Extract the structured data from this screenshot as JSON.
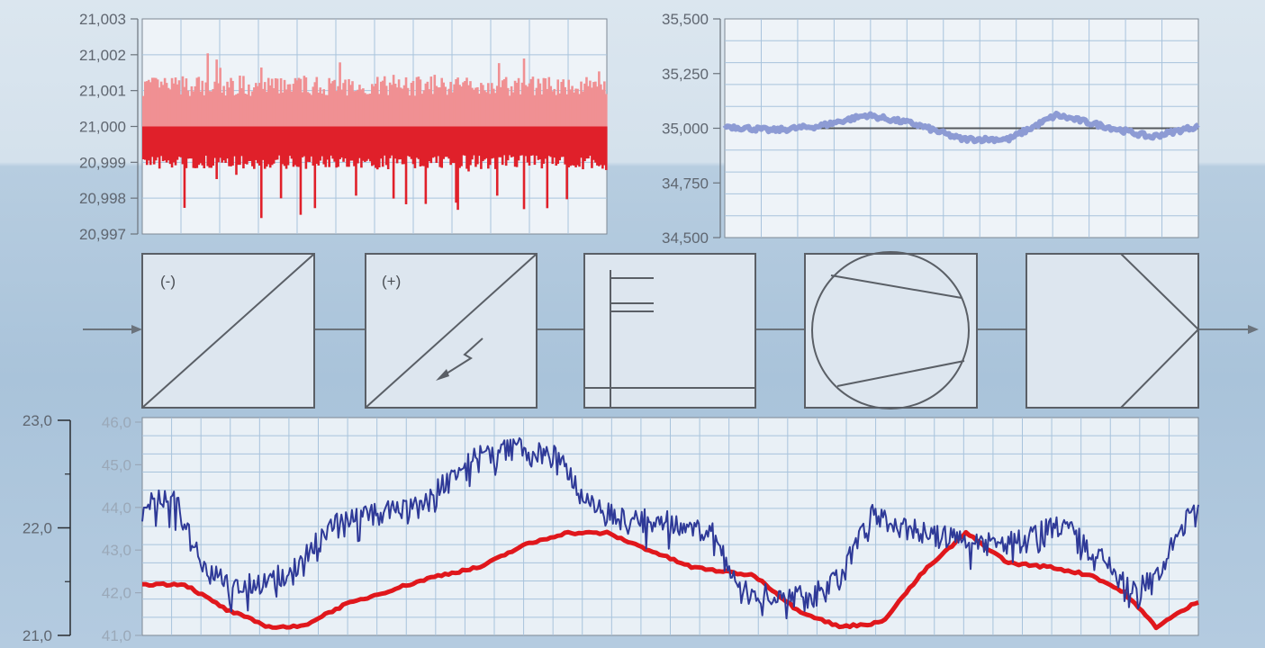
{
  "colors": {
    "noise_red": "#f09093",
    "noise_red_dark": "#e0202a",
    "signal_purple": "#8d9bd4",
    "trend_blue": "#2f3a98",
    "trend_red": "#e0171c",
    "grid": "#a8c3dc",
    "plot_bg": "#eef3f8"
  },
  "blocks": [
    {
      "label": "(-)",
      "icon": "converter-minus-icon"
    },
    {
      "label": "(+)",
      "icon": "converter-plus-icon"
    },
    {
      "label": "",
      "icon": "filter-icon"
    },
    {
      "label": "",
      "icon": "pump-icon"
    },
    {
      "label": "",
      "icon": "amplifier-icon"
    }
  ],
  "chart_data": [
    {
      "type": "bar",
      "title": "",
      "ylim": [
        20997,
        21003
      ],
      "yticks": [
        "21,003",
        "21,002",
        "21,001",
        "21,000",
        "20,999",
        "20,998",
        "20,997"
      ],
      "baseline": 21000,
      "noise_max": 21001.85,
      "noise_min": 20998.1,
      "points": 260,
      "grid": true
    },
    {
      "type": "line",
      "title": "",
      "ylim": [
        34500,
        35500
      ],
      "yticks": [
        "35,500",
        "35,250",
        "35,000",
        "34,750",
        "34,500"
      ],
      "reference": 35000,
      "series": [
        {
          "x": [
            0,
            0.1,
            0.2,
            0.3,
            0.4,
            0.5,
            0.6,
            0.7,
            0.8,
            0.9,
            1.0
          ],
          "values": [
            35010,
            34990,
            35010,
            35060,
            35020,
            34950,
            34950,
            35060,
            35010,
            34960,
            35010
          ]
        }
      ],
      "grid": true
    },
    {
      "type": "line",
      "title": "",
      "ylim_left": [
        21.0,
        23.0
      ],
      "yticks_left": [
        "23,0",
        "22,0",
        "21,0"
      ],
      "ylim_right": [
        41.0,
        46.0
      ],
      "yticks_right": [
        "46,0",
        "45,0",
        "44,0",
        "43,0",
        "42,0",
        "41,0"
      ],
      "series": [
        {
          "axis": "right",
          "x": [
            0,
            0.03,
            0.06,
            0.09,
            0.12,
            0.15,
            0.18,
            0.21,
            0.24,
            0.27,
            0.3,
            0.33,
            0.36,
            0.39,
            0.42,
            0.45,
            0.48,
            0.51,
            0.54,
            0.57,
            0.6,
            0.63,
            0.66,
            0.69,
            0.72,
            0.75,
            0.78,
            0.81,
            0.84,
            0.87,
            0.9,
            0.93,
            0.96,
            0.99,
            1.0
          ],
          "values": [
            44.1,
            44.2,
            42.6,
            42.1,
            42.3,
            42.7,
            43.6,
            43.8,
            43.9,
            44.2,
            45.0,
            45.3,
            45.4,
            45.2,
            44.3,
            43.8,
            43.7,
            43.6,
            43.4,
            42.0,
            42.0,
            41.9,
            42.3,
            43.8,
            43.6,
            43.3,
            43.3,
            43.1,
            43.3,
            43.6,
            43.0,
            42.2,
            42.3,
            43.8,
            43.8
          ]
        },
        {
          "axis": "right",
          "x": [
            0,
            0.04,
            0.08,
            0.12,
            0.15,
            0.19,
            0.24,
            0.28,
            0.32,
            0.36,
            0.4,
            0.44,
            0.48,
            0.52,
            0.55,
            0.58,
            0.62,
            0.66,
            0.7,
            0.74,
            0.78,
            0.82,
            0.86,
            0.9,
            0.93,
            0.96,
            1.0
          ],
          "values": [
            42.2,
            42.2,
            41.6,
            41.2,
            41.2,
            41.7,
            42.1,
            42.4,
            42.6,
            43.1,
            43.4,
            43.4,
            43.0,
            42.6,
            42.5,
            42.4,
            41.6,
            41.2,
            41.3,
            42.5,
            43.4,
            42.7,
            42.6,
            42.4,
            42.0,
            41.2,
            41.8
          ]
        }
      ],
      "grid": true
    }
  ]
}
